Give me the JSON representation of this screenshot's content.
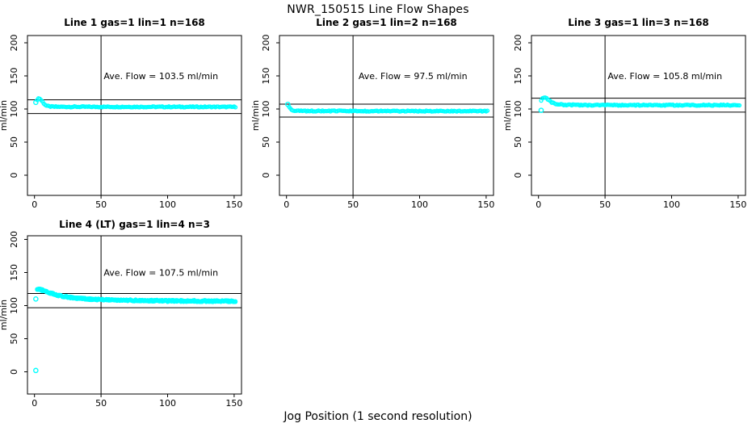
{
  "figure": {
    "title": "NWR_150515  Line Flow Shapes",
    "xlabel": "Jog Position (1 second resolution)"
  },
  "chart_data": {
    "type": "scatter",
    "title": "NWR_150515  Line Flow Shapes",
    "xlabel": "Jog Position (1 second resolution)",
    "ylabel": "ml/min",
    "point_color": "#00ffff",
    "axis_color": "#000000",
    "grid": false,
    "xlim": [
      -6,
      161
    ],
    "ylim": [
      -30,
      210
    ],
    "xticks": [
      0,
      50,
      100,
      150
    ],
    "yticks": [
      0,
      50,
      100,
      150,
      200
    ],
    "plots": [
      {
        "title": "Line 1 gas=1 lin=1 n=168",
        "annotation": "Ave. Flow =  103.5  ml/min",
        "ave_flow_ml_min": 103.5,
        "n": 168,
        "vline_x": 50,
        "hlines": [
          113.85,
          93.15
        ],
        "open_points": [
          [
            1,
            110
          ]
        ],
        "band_profile": [
          [
            2,
            114
          ],
          [
            3,
            116
          ],
          [
            4,
            115.5
          ],
          [
            5,
            113.5
          ],
          [
            6,
            111
          ],
          [
            7,
            108.5
          ],
          [
            8,
            106.5
          ],
          [
            9,
            105
          ],
          [
            10,
            104.3
          ],
          [
            12,
            103.7
          ],
          [
            15,
            103.4
          ],
          [
            25,
            103.3
          ],
          [
            151,
            103.2
          ]
        ],
        "x_end": 151,
        "jitter": 0.7,
        "passes": 1
      },
      {
        "title": "Line 2 gas=1 lin=2 n=168",
        "annotation": "Ave. Flow =  97.5  ml/min",
        "ave_flow_ml_min": 97.5,
        "n": 168,
        "vline_x": 50,
        "hlines": [
          107.25,
          87.75
        ],
        "open_points": [
          [
            1,
            107
          ]
        ],
        "band_profile": [
          [
            2,
            103
          ],
          [
            3,
            100.5
          ],
          [
            4,
            99
          ],
          [
            5,
            98.2
          ],
          [
            6,
            97.7
          ],
          [
            8,
            97.2
          ],
          [
            12,
            97
          ],
          [
            151,
            96.8
          ]
        ],
        "x_end": 151,
        "jitter": 0.7,
        "passes": 1
      },
      {
        "title": "Line 3 gas=1 lin=3 n=168",
        "annotation": "Ave. Flow =  105.8  ml/min",
        "ave_flow_ml_min": 105.8,
        "n": 168,
        "vline_x": 50,
        "hlines": [
          116.38,
          95.22
        ],
        "open_points": [
          [
            2,
            98
          ]
        ],
        "band_profile": [
          [
            2,
            112.5
          ],
          [
            3,
            115.5
          ],
          [
            4,
            117
          ],
          [
            5,
            116.8
          ],
          [
            6,
            115.8
          ],
          [
            7,
            114.3
          ],
          [
            8,
            112.8
          ],
          [
            10,
            110.3
          ],
          [
            12,
            108.5
          ],
          [
            15,
            107
          ],
          [
            20,
            106.3
          ],
          [
            30,
            106
          ],
          [
            151,
            105.7
          ]
        ],
        "x_end": 151,
        "jitter": 0.8,
        "passes": 1
      },
      {
        "title": "Line 4 (LT) gas=1 lin=4 n=3",
        "annotation": "Ave. Flow =  107.5  ml/min",
        "ave_flow_ml_min": 107.5,
        "n": 3,
        "vline_x": 50,
        "hlines": [
          118.25,
          96.75
        ],
        "open_points": [
          [
            1,
            110
          ],
          [
            1,
            2
          ]
        ],
        "band_profile": [
          [
            2,
            125
          ],
          [
            4,
            124.3
          ],
          [
            6,
            123.2
          ],
          [
            8,
            121.8
          ],
          [
            10,
            120.3
          ],
          [
            14,
            117.8
          ],
          [
            18,
            115.6
          ],
          [
            22,
            113.9
          ],
          [
            26,
            112.6
          ],
          [
            32,
            111.2
          ],
          [
            40,
            109.9
          ],
          [
            50,
            109
          ],
          [
            65,
            108.2
          ],
          [
            80,
            107.7
          ],
          [
            100,
            107.2
          ],
          [
            125,
            106.9
          ],
          [
            151,
            106.7
          ]
        ],
        "x_end": 151,
        "jitter": 1.3,
        "passes": 3
      }
    ]
  }
}
